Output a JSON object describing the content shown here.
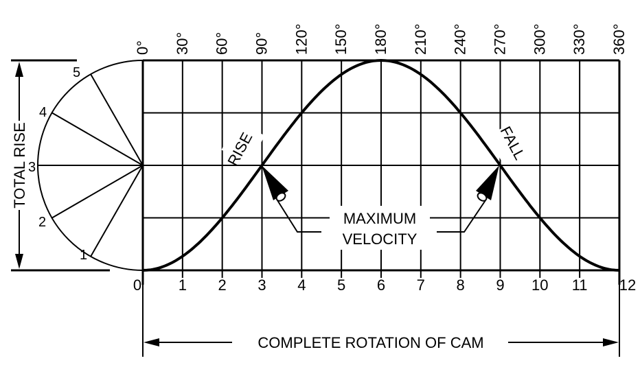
{
  "diagram": {
    "title_vertical": "TOTAL RISE",
    "angle_labels": [
      "0°",
      "30°",
      "60°",
      "90°",
      "120°",
      "150°",
      "180°",
      "210°",
      "240°",
      "270°",
      "300°",
      "330°",
      "360°"
    ],
    "step_labels": [
      "0",
      "1",
      "2",
      "3",
      "4",
      "5",
      "6",
      "7",
      "8",
      "9",
      "10",
      "11",
      "12"
    ],
    "circle_labels": [
      "1",
      "2",
      "3",
      "4",
      "5"
    ],
    "rise_label": "RISE",
    "fall_label": "FALL",
    "max_velocity_line1": "MAXIMUM",
    "max_velocity_line2": "VELOCITY",
    "rotation_label": "COMPLETE ROTATION OF CAM"
  }
}
